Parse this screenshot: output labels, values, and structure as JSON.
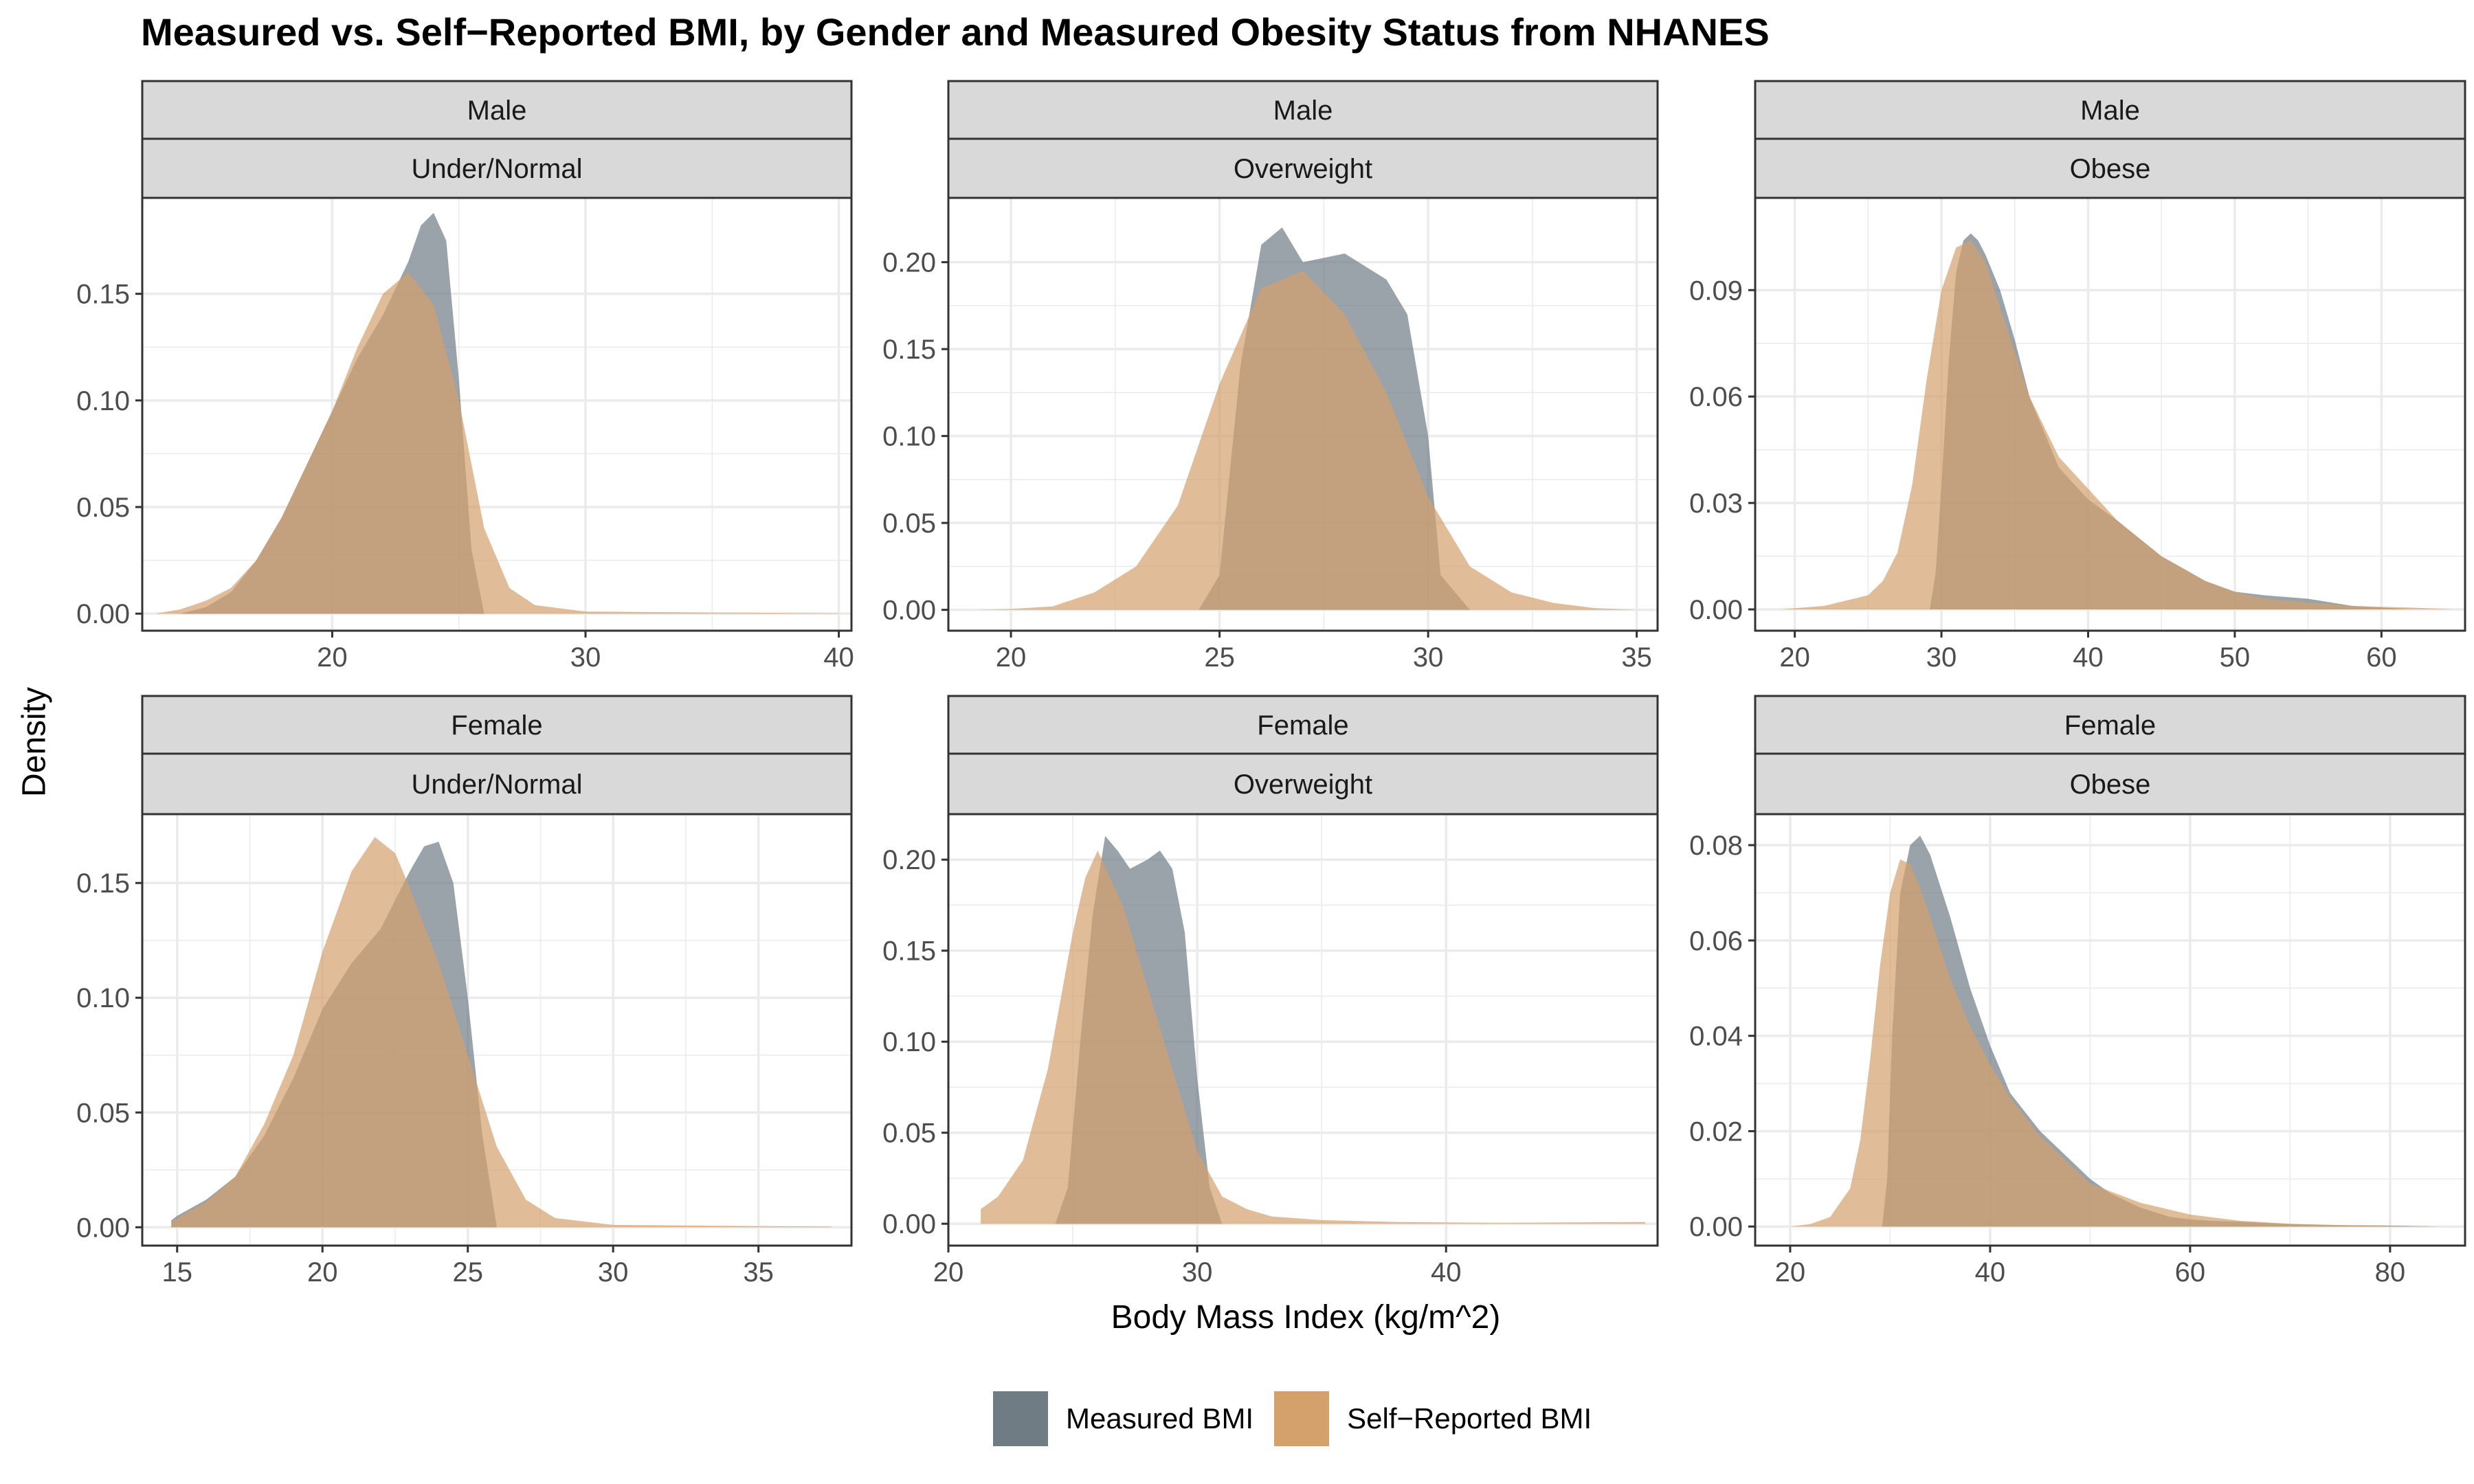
{
  "colors": {
    "measured": "#6F7C84",
    "self_reported": "#D4A06C",
    "strip_fill": "#D9D9D9",
    "panel_border": "#333333",
    "grid": "#EBEBEB"
  },
  "chart_data": {
    "type": "area",
    "title": "Measured vs. Self−Reported BMI, by Gender and Measured Obesity Status from NHANES",
    "xlabel": "Body Mass Index (kg/m^2)",
    "ylabel": "Density",
    "legend_position": "bottom",
    "legend": [
      "Measured BMI",
      "Self−Reported BMI"
    ],
    "grid": true,
    "panels": [
      {
        "row_label": "Male",
        "col_label": "Under/Normal",
        "xlim": [
          12.5,
          40.5
        ],
        "ylim": [
          -0.008,
          0.195
        ],
        "xticks": [
          20,
          30,
          40
        ],
        "xtick_labels": [
          "20",
          "30",
          "40"
        ],
        "yticks": [
          0,
          0.05,
          0.1,
          0.15
        ],
        "ytick_labels": [
          "0.00",
          "0.05",
          "0.10",
          "0.15"
        ],
        "series": [
          {
            "name": "Measured BMI",
            "x": [
              14,
              15,
              16,
              17,
              18,
              19,
              20,
              21,
              22,
              23,
              23.5,
              24,
              24.5,
              25,
              25.5,
              26
            ],
            "y": [
              0,
              0.003,
              0.01,
              0.025,
              0.045,
              0.07,
              0.095,
              0.12,
              0.14,
              0.165,
              0.182,
              0.188,
              0.175,
              0.11,
              0.03,
              0
            ]
          },
          {
            "name": "Self−Reported BMI",
            "x": [
              13,
              14,
              15,
              16,
              17,
              18,
              19,
              20,
              21,
              22,
              23,
              24,
              25,
              26,
              27,
              28,
              30,
              35,
              40
            ],
            "y": [
              0,
              0.002,
              0.006,
              0.012,
              0.025,
              0.045,
              0.07,
              0.095,
              0.125,
              0.15,
              0.16,
              0.145,
              0.1,
              0.04,
              0.012,
              0.004,
              0.001,
              0.0005,
              0.0002
            ]
          }
        ]
      },
      {
        "row_label": "Male",
        "col_label": "Overweight",
        "xlim": [
          18.5,
          35.5
        ],
        "ylim": [
          -0.012,
          0.237
        ],
        "xticks": [
          20,
          25,
          30,
          35
        ],
        "xtick_labels": [
          "20",
          "25",
          "30",
          "35"
        ],
        "yticks": [
          0,
          0.05,
          0.1,
          0.15,
          0.2
        ],
        "ytick_labels": [
          "0.00",
          "0.05",
          "0.10",
          "0.15",
          "0.20"
        ],
        "series": [
          {
            "name": "Measured BMI",
            "x": [
              24.5,
              25,
              25.5,
              26,
              26.5,
              27,
              28,
              29,
              29.5,
              30,
              30.3,
              31
            ],
            "y": [
              0,
              0.02,
              0.14,
              0.21,
              0.22,
              0.2,
              0.205,
              0.19,
              0.17,
              0.1,
              0.02,
              0
            ]
          },
          {
            "name": "Self−Reported BMI",
            "x": [
              19.2,
              20,
              21,
              22,
              23,
              24,
              25,
              26,
              27,
              28,
              29,
              30,
              31,
              32,
              33,
              34,
              35
            ],
            "y": [
              0,
              0.0005,
              0.002,
              0.01,
              0.025,
              0.06,
              0.13,
              0.185,
              0.195,
              0.17,
              0.125,
              0.065,
              0.025,
              0.01,
              0.004,
              0.001,
              0
            ]
          }
        ]
      },
      {
        "row_label": "Male",
        "col_label": "Obese",
        "xlim": [
          17.3,
          65.7
        ],
        "ylim": [
          -0.006,
          0.116
        ],
        "xticks": [
          20,
          30,
          40,
          50,
          60
        ],
        "xtick_labels": [
          "20",
          "30",
          "40",
          "50",
          "60"
        ],
        "yticks": [
          0,
          0.03,
          0.06,
          0.09
        ],
        "ytick_labels": [
          "0.00",
          "0.03",
          "0.06",
          "0.09"
        ],
        "series": [
          {
            "name": "Measured BMI",
            "x": [
              29.2,
              29.6,
              30,
              30.5,
              31,
              31.5,
              32,
              32.5,
              33,
              34,
              35,
              36,
              38,
              40,
              42,
              45,
              48,
              50,
              52,
              55,
              58,
              62
            ],
            "y": [
              0,
              0.01,
              0.035,
              0.07,
              0.095,
              0.104,
              0.106,
              0.104,
              0.1,
              0.09,
              0.076,
              0.06,
              0.04,
              0.031,
              0.025,
              0.015,
              0.008,
              0.005,
              0.004,
              0.003,
              0.001,
              0
            ]
          },
          {
            "name": "Self−Reported BMI",
            "x": [
              19,
              22,
              25,
              26,
              27,
              28,
              29,
              30,
              31,
              32,
              33,
              34,
              36,
              38,
              40,
              42,
              45,
              48,
              50,
              52,
              55,
              58,
              62,
              65
            ],
            "y": [
              0,
              0.001,
              0.004,
              0.008,
              0.016,
              0.035,
              0.065,
              0.09,
              0.102,
              0.104,
              0.098,
              0.085,
              0.06,
              0.043,
              0.034,
              0.025,
              0.015,
              0.008,
              0.005,
              0.003,
              0.002,
              0.001,
              0.0005,
              0
            ]
          }
        ]
      },
      {
        "row_label": "Female",
        "col_label": "Under/Normal",
        "xlim": [
          13.8,
          38.2
        ],
        "ylim": [
          -0.008,
          0.18
        ],
        "xticks": [
          15,
          20,
          25,
          30,
          35
        ],
        "xtick_labels": [
          "15",
          "20",
          "25",
          "30",
          "35"
        ],
        "yticks": [
          0,
          0.05,
          0.1,
          0.15
        ],
        "ytick_labels": [
          "0.00",
          "0.05",
          "0.10",
          "0.15"
        ],
        "series": [
          {
            "name": "Measured BMI",
            "x": [
              14.8,
              15,
              16,
              17,
              18,
              19,
              20,
              21,
              22,
              23,
              23.5,
              24,
              24.5,
              25,
              25.5,
              26
            ],
            "y": [
              0.003,
              0.005,
              0.012,
              0.022,
              0.04,
              0.065,
              0.095,
              0.115,
              0.13,
              0.155,
              0.166,
              0.168,
              0.15,
              0.1,
              0.04,
              0
            ]
          },
          {
            "name": "Self−Reported BMI",
            "x": [
              14.8,
              15,
              16,
              17,
              18,
              19,
              20,
              21,
              21.8,
              22.5,
              23,
              24,
              25,
              26,
              27,
              28,
              30,
              35,
              37.5
            ],
            "y": [
              0.002,
              0.004,
              0.011,
              0.022,
              0.045,
              0.075,
              0.12,
              0.155,
              0.17,
              0.163,
              0.148,
              0.115,
              0.075,
              0.035,
              0.012,
              0.004,
              0.001,
              0.0005,
              0.0003
            ]
          }
        ]
      },
      {
        "row_label": "Female",
        "col_label": "Overweight",
        "xlim": [
          20,
          48.5
        ],
        "ylim": [
          -0.012,
          0.225
        ],
        "xticks": [
          20,
          30,
          40
        ],
        "xtick_labels": [
          "20",
          "30",
          "40"
        ],
        "yticks": [
          0,
          0.05,
          0.1,
          0.15,
          0.2
        ],
        "ytick_labels": [
          "0.00",
          "0.05",
          "0.10",
          "0.15",
          "0.20"
        ],
        "series": [
          {
            "name": "Measured BMI",
            "x": [
              24.3,
              24.8,
              25.3,
              25.8,
              26.3,
              26.8,
              27.3,
              28,
              28.5,
              29,
              29.5,
              30,
              30.5,
              31
            ],
            "y": [
              0,
              0.02,
              0.1,
              0.17,
              0.213,
              0.205,
              0.195,
              0.2,
              0.205,
              0.195,
              0.16,
              0.08,
              0.02,
              0
            ]
          },
          {
            "name": "Self−Reported BMI",
            "x": [
              21.3,
              22,
              23,
              24,
              25,
              25.5,
              26,
              27,
              28,
              29,
              30,
              31,
              32,
              33,
              35,
              38,
              42,
              48
            ],
            "y": [
              0.008,
              0.015,
              0.035,
              0.085,
              0.16,
              0.19,
              0.205,
              0.175,
              0.13,
              0.085,
              0.04,
              0.015,
              0.008,
              0.004,
              0.002,
              0.001,
              0.0005,
              0.001
            ]
          }
        ]
      },
      {
        "row_label": "Female",
        "col_label": "Obese",
        "xlim": [
          16.5,
          87.5
        ],
        "ylim": [
          -0.004,
          0.0865
        ],
        "xticks": [
          20,
          40,
          60,
          80
        ],
        "xtick_labels": [
          "20",
          "40",
          "60",
          "80"
        ],
        "yticks": [
          0,
          0.02,
          0.04,
          0.06,
          0.08
        ],
        "ytick_labels": [
          "0.00",
          "0.02",
          "0.04",
          "0.06",
          "0.08"
        ],
        "series": [
          {
            "name": "Measured BMI",
            "x": [
              29.2,
              29.7,
              30.2,
              31,
              32,
              33,
              34,
              36,
              38,
              40,
              42,
              45,
              48,
              50,
              52,
              55,
              58,
              60,
              62,
              65,
              70,
              75,
              80,
              85
            ],
            "y": [
              0,
              0.01,
              0.04,
              0.07,
              0.08,
              0.082,
              0.078,
              0.065,
              0.05,
              0.038,
              0.028,
              0.02,
              0.014,
              0.01,
              0.007,
              0.004,
              0.002,
              0.0015,
              0.0012,
              0.001,
              0.0005,
              0.0003,
              0.0002,
              0
            ]
          },
          {
            "name": "Self−Reported BMI",
            "x": [
              20,
              22,
              24,
              26,
              27,
              28,
              29,
              30,
              31,
              32,
              33,
              34,
              36,
              38,
              40,
              42,
              45,
              48,
              50,
              55,
              60,
              65,
              70,
              75,
              80,
              85
            ],
            "y": [
              0,
              0.0005,
              0.002,
              0.008,
              0.018,
              0.035,
              0.055,
              0.07,
              0.077,
              0.076,
              0.071,
              0.065,
              0.052,
              0.042,
              0.034,
              0.027,
              0.019,
              0.013,
              0.009,
              0.005,
              0.0025,
              0.0012,
              0.0006,
              0.0003,
              0.0001,
              0
            ]
          }
        ]
      }
    ]
  }
}
